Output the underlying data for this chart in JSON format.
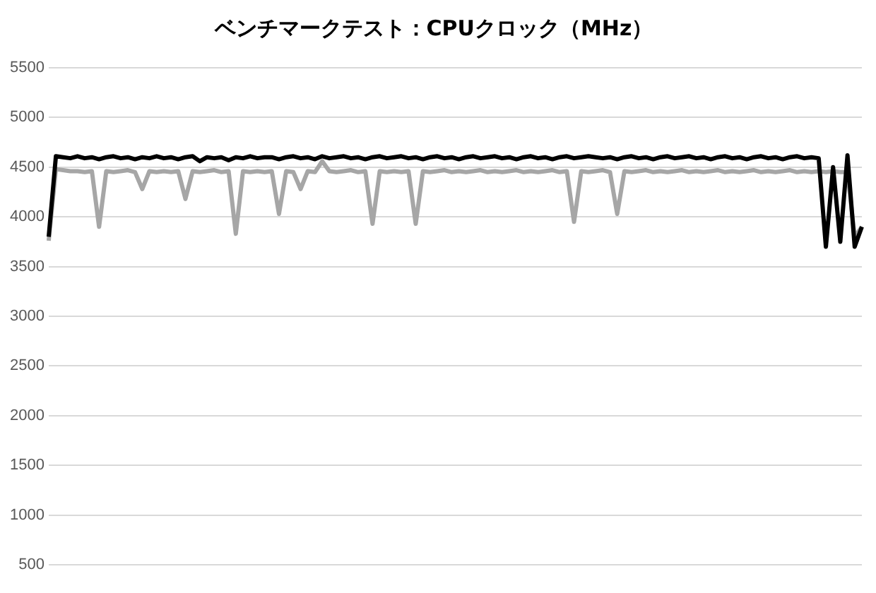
{
  "chart_data": {
    "type": "line",
    "title": "ベンチマークテスト：CPUクロック（MHz）",
    "categories": [
      null,
      null,
      null,
      null,
      null,
      null,
      null,
      null,
      null,
      null,
      null,
      null,
      null,
      null,
      null,
      null,
      null,
      null,
      null,
      null,
      null,
      null,
      null,
      null,
      null,
      null,
      null,
      null,
      null,
      null,
      null,
      null,
      null,
      null,
      null,
      null,
      null,
      null,
      null,
      null,
      null,
      null,
      null,
      null,
      null,
      null,
      null,
      null,
      null,
      null,
      null,
      null,
      null,
      null,
      null,
      null,
      null,
      null,
      null,
      null,
      null,
      null,
      null,
      null,
      null,
      null,
      null,
      null,
      null,
      null,
      null,
      null,
      null,
      null,
      null,
      null,
      null,
      null,
      null,
      null,
      null,
      null,
      null,
      null,
      null,
      null,
      null,
      null,
      null,
      null,
      null,
      null,
      null,
      null,
      null,
      null,
      null,
      null,
      null,
      null,
      null,
      null,
      null,
      null,
      null,
      null,
      null,
      null,
      null,
      null,
      null,
      null,
      null,
      null
    ],
    "series": [
      {
        "color": "#000000",
        "values": [
          3800,
          4610,
          4600,
          4590,
          4610,
          4590,
          4600,
          4580,
          4600,
          4610,
          4590,
          4600,
          4580,
          4600,
          4590,
          4610,
          4590,
          4600,
          4580,
          4600,
          4610,
          4560,
          4600,
          4590,
          4600,
          4570,
          4600,
          4590,
          4610,
          4590,
          4600,
          4600,
          4580,
          4600,
          4610,
          4590,
          4600,
          4580,
          4610,
          4590,
          4600,
          4610,
          4590,
          4600,
          4580,
          4600,
          4610,
          4590,
          4600,
          4610,
          4590,
          4600,
          4580,
          4600,
          4610,
          4590,
          4600,
          4580,
          4600,
          4610,
          4590,
          4600,
          4610,
          4590,
          4600,
          4580,
          4600,
          4610,
          4590,
          4600,
          4580,
          4600,
          4610,
          4590,
          4600,
          4610,
          4600,
          4590,
          4600,
          4580,
          4600,
          4610,
          4590,
          4600,
          4580,
          4600,
          4610,
          4590,
          4600,
          4610,
          4590,
          4600,
          4580,
          4600,
          4610,
          4590,
          4600,
          4580,
          4600,
          4610,
          4590,
          4600,
          4580,
          4600,
          4610,
          4590,
          4600,
          4590,
          3700,
          4500,
          3750,
          4620,
          3700,
          3900
        ]
      },
      {
        "color": "#a6a6a6",
        "values": [
          3760,
          4480,
          4470,
          4460,
          4460,
          4450,
          4460,
          3900,
          4460,
          4450,
          4460,
          4470,
          4450,
          4280,
          4460,
          4450,
          4460,
          4450,
          4460,
          4180,
          4460,
          4450,
          4460,
          4470,
          4450,
          4460,
          3830,
          4460,
          4450,
          4460,
          4450,
          4460,
          4030,
          4460,
          4450,
          4280,
          4460,
          4450,
          4560,
          4460,
          4450,
          4460,
          4470,
          4450,
          4460,
          3930,
          4460,
          4450,
          4460,
          4450,
          4460,
          3930,
          4460,
          4450,
          4460,
          4470,
          4450,
          4460,
          4450,
          4460,
          4470,
          4450,
          4460,
          4450,
          4460,
          4470,
          4450,
          4460,
          4450,
          4460,
          4470,
          4450,
          4460,
          3950,
          4460,
          4450,
          4460,
          4470,
          4450,
          4030,
          4460,
          4450,
          4460,
          4470,
          4450,
          4460,
          4450,
          4460,
          4470,
          4450,
          4460,
          4450,
          4460,
          4470,
          4450,
          4460,
          4450,
          4460,
          4470,
          4450,
          4460,
          4450,
          4460,
          4470,
          4450,
          4460,
          4450,
          4460,
          4450,
          4460,
          4450,
          4450,
          3800,
          3900
        ]
      }
    ],
    "ylim": [
      500,
      5500
    ],
    "yticks": [
      500,
      1000,
      1500,
      2000,
      2500,
      3000,
      3500,
      4000,
      4500,
      5000,
      5500
    ],
    "grid": "y",
    "tick_labels": "y"
  }
}
